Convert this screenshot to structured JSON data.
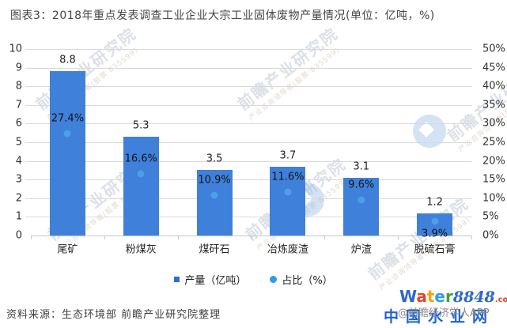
{
  "title": "图表3：2018年重点发表调查工业企业大宗工业固体废物产量情况(单位：亿吨，%)",
  "chart_data": {
    "type": "bar",
    "categories": [
      "尾矿",
      "粉煤灰",
      "煤矸石",
      "冶炼废渣",
      "炉渣",
      "脱硫石膏"
    ],
    "series": [
      {
        "name": "产量（亿吨）",
        "type": "bar",
        "axis": "left",
        "values": [
          8.8,
          5.3,
          3.5,
          3.7,
          3.1,
          1.2
        ],
        "color": "#3f80da"
      },
      {
        "name": "占比（%）",
        "type": "scatter",
        "axis": "right",
        "values": [
          27.4,
          16.6,
          10.9,
          11.6,
          9.6,
          3.9
        ],
        "suffix": "%",
        "color": "#4c9fe8"
      }
    ],
    "left_axis": {
      "min": 0,
      "max": 10,
      "step": 1
    },
    "right_axis": {
      "min": 0,
      "max": 50,
      "step": 5,
      "suffix": "%"
    },
    "grid": true,
    "legend_position": "bottom",
    "title": "2018年重点发表调查工业企业大宗工业固体废物产量情况",
    "unit_note": "单位：亿吨，%"
  },
  "legend": [
    {
      "label": "产量（亿吨）",
      "marker": "square",
      "color": "#2f6ed2"
    },
    {
      "label": "占比（%）",
      "marker": "circle",
      "color": "#2d9ce5"
    }
  ],
  "source_label": "资料来源：生态环境部 前瞻产业研究院整理",
  "watermark": {
    "diagonal_text": "前瞻产业研究院",
    "diagonal_sub_text": "产业咨询领导者(股票·835599)",
    "brand": {
      "letters": [
        {
          "ch": "W",
          "color": "#2d66cf"
        },
        {
          "ch": "a",
          "color": "#e8402d"
        },
        {
          "ch": "t",
          "color": "#f0a800"
        },
        {
          "ch": "e",
          "color": "#2d9ce5"
        },
        {
          "ch": "r",
          "color": "#3fa23c"
        }
      ],
      "number": "8848",
      "number_color": "#2d66cf",
      "tld": ".com",
      "tld_color": "#e8402d",
      "site_name": "中国水业网",
      "site_color": "#1f63d0",
      "overlay": "@前瞻经济学人APP",
      "overlay_color": "#8a8a8a"
    }
  }
}
